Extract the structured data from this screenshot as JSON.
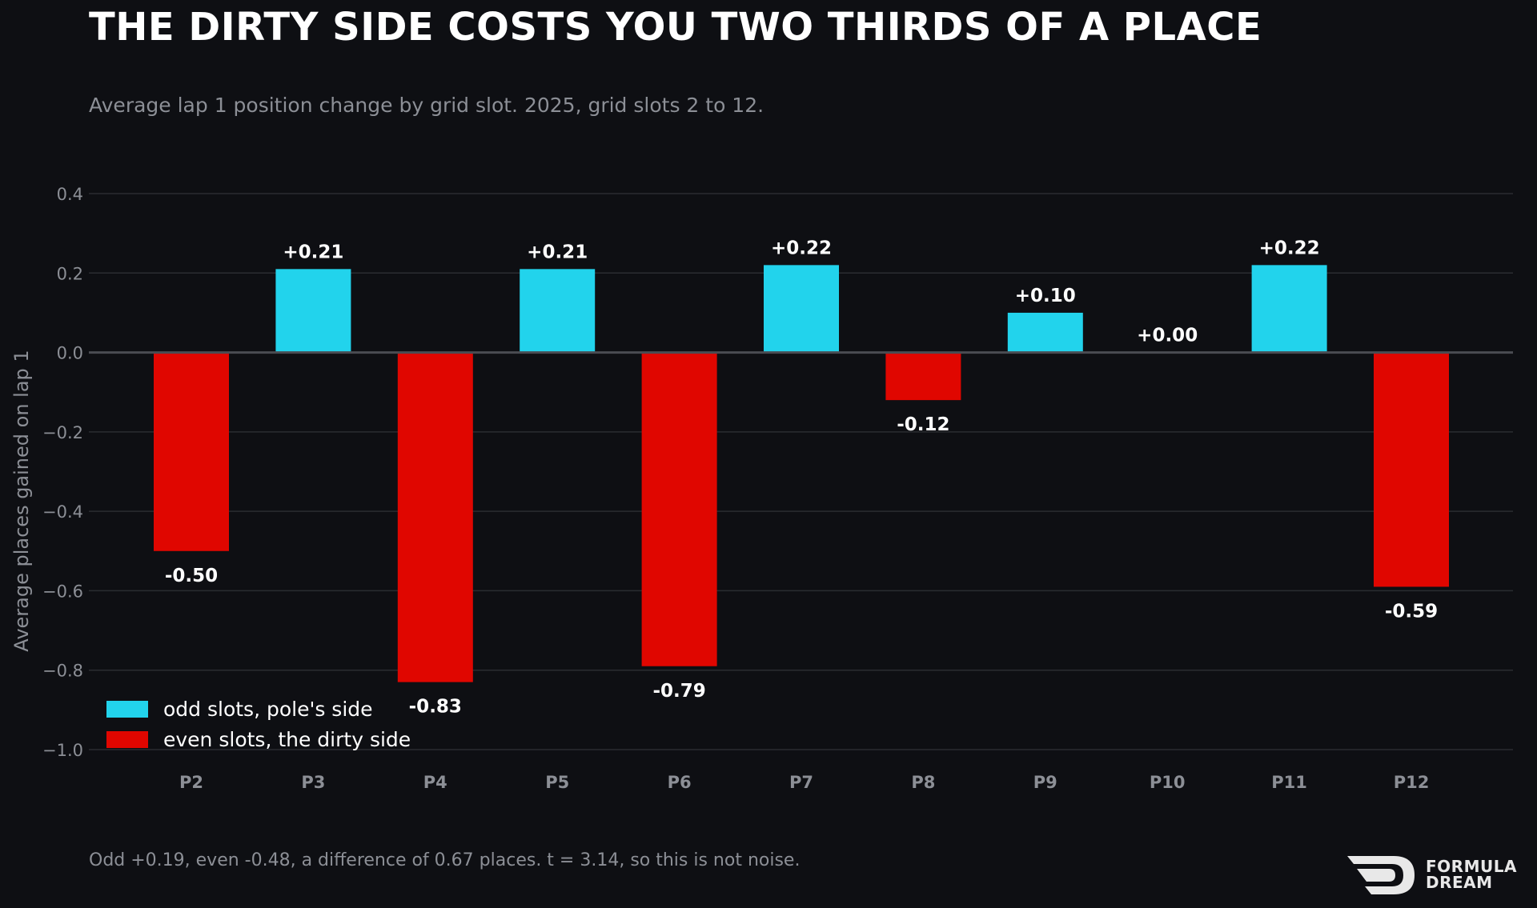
{
  "header": {
    "title": "THE DIRTY SIDE COSTS YOU TWO THIRDS OF A PLACE",
    "subtitle": "Average lap 1 position change by grid slot. 2025, grid slots 2 to 12."
  },
  "footer": {
    "note": "Odd +0.19, even -0.48, a difference of 0.67 places. t = 3.14, so this is not noise.",
    "brand_line1": "FORMULA",
    "brand_line2": "DREAM"
  },
  "colors": {
    "background": "#0e0f13",
    "odd": "#22d3ec",
    "even": "#e00600",
    "grid": "#2a2c31",
    "zero_line": "#4a4c52",
    "tick_text": "#8c8f96",
    "value_text": "#ffffff"
  },
  "chart_data": {
    "type": "bar",
    "categories": [
      "P2",
      "P3",
      "P4",
      "P5",
      "P6",
      "P7",
      "P8",
      "P9",
      "P10",
      "P11",
      "P12"
    ],
    "values": [
      -0.5,
      0.21,
      -0.83,
      0.21,
      -0.79,
      0.22,
      -0.12,
      0.1,
      0.0,
      0.22,
      -0.59
    ],
    "value_labels": [
      "-0.50",
      "+0.21",
      "-0.83",
      "+0.21",
      "-0.79",
      "+0.22",
      "-0.12",
      "+0.10",
      "+0.00",
      "+0.22",
      "-0.59"
    ],
    "groups": [
      "even",
      "odd",
      "even",
      "odd",
      "even",
      "odd",
      "even",
      "odd",
      "even",
      "odd",
      "even"
    ],
    "series": [
      {
        "name": "odd slots, pole's side",
        "group": "odd"
      },
      {
        "name": "even slots, the dirty side",
        "group": "even"
      }
    ],
    "ylabel": "Average places gained on lap 1",
    "ylim": [
      -1.0,
      0.4
    ],
    "yticks": [
      0.4,
      0.2,
      0.0,
      -0.2,
      -0.4,
      -0.6,
      -0.8,
      -1.0
    ],
    "ytick_labels": [
      "0.4",
      "0.2",
      "0.0",
      "−0.2",
      "−0.4",
      "−0.6",
      "−0.8",
      "−1.0"
    ],
    "grid": true,
    "legend_position": "bottom-left"
  }
}
